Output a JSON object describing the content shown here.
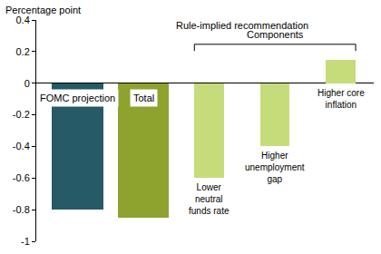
{
  "chart_data": {
    "type": "bar",
    "ylabel": "Percentage point",
    "categories": [
      "FOMC projection",
      "Total",
      "Lower neutral funds rate",
      "Higher unemployment gap",
      "Higher core inflation"
    ],
    "values": [
      -0.8,
      -0.85,
      -0.6,
      -0.4,
      0.15
    ],
    "colors": [
      "#255a66",
      "#8ea22e",
      "#c6dc7b",
      "#c6dc7b",
      "#c6dc7b"
    ],
    "ylim": [
      -1,
      0.4
    ],
    "yticks": [
      -1,
      -0.8,
      -0.6,
      -0.4,
      -0.2,
      0,
      0.2,
      0.4
    ],
    "annotations": [
      {
        "text": "Rule-implied recommendation",
        "span": [
          "Total",
          "Higher core inflation"
        ]
      },
      {
        "text": "Components",
        "span": [
          "Lower neutral funds rate",
          "Higher core inflation"
        ]
      }
    ],
    "grid": false,
    "data_labels": false,
    "tick_labels": "y"
  }
}
